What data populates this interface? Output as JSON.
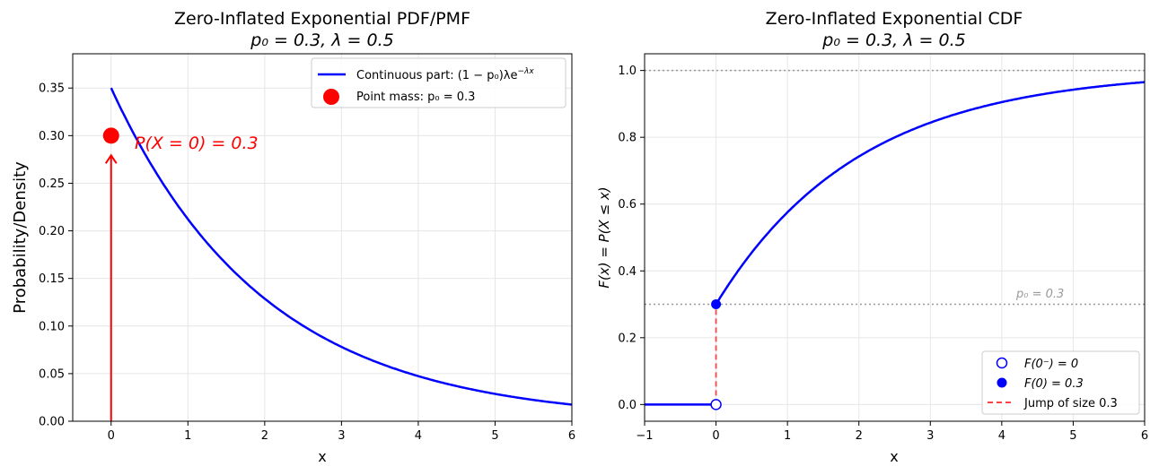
{
  "chart_data": [
    {
      "type": "line",
      "title": "Zero-Inflated Exponential PDF/PMF",
      "subtitle": "p₀ = 0.3, λ = 0.5",
      "xlabel": "x",
      "ylabel": "Probability/Density",
      "xlim": [
        -0.5,
        6
      ],
      "ylim": [
        0,
        0.386
      ],
      "xticks": [
        0,
        1,
        2,
        3,
        4,
        5,
        6
      ],
      "yticks": [
        0.0,
        0.05,
        0.1,
        0.15,
        0.2,
        0.25,
        0.3,
        0.35
      ],
      "grid": true,
      "p0": 0.3,
      "lambda": 0.5,
      "series": [
        {
          "name": "Continuous part: (1 − p₀)λe",
          "name_sup": "−λx",
          "formula": "(1-p0)*lambda*exp(-lambda*x)",
          "x_range": [
            0,
            6
          ],
          "color": "#0000ff"
        },
        {
          "name": "Point mass: p₀ = 0.3",
          "x": [
            0
          ],
          "y": [
            0.3
          ],
          "color": "#ff0000",
          "marker": "circle"
        }
      ],
      "annotation": "P(X = 0) = 0.3",
      "legend_placement": "top-right"
    },
    {
      "type": "line",
      "title": "Zero-Inflated Exponential CDF",
      "subtitle": "p₀ = 0.3, λ = 0.5",
      "xlabel": "x",
      "ylabel": "F(x) = P(X ≤ x)",
      "xlim": [
        -1,
        6
      ],
      "ylim": [
        -0.05,
        1.05
      ],
      "xticks": [
        -1,
        0,
        1,
        2,
        3,
        4,
        5,
        6
      ],
      "yticks": [
        0.0,
        0.2,
        0.4,
        0.6,
        0.8,
        1.0
      ],
      "grid": true,
      "hlines": [
        {
          "y": 1.0,
          "color": "#999999"
        },
        {
          "y": 0.3,
          "color": "#999999",
          "label": "p₀ = 0.3"
        }
      ],
      "series": [
        {
          "name": "F(0⁻) = 0",
          "x": [
            0
          ],
          "y": [
            0
          ],
          "marker": "open-circle",
          "color": "#0000ff"
        },
        {
          "name": "F(0) = 0.3",
          "x": [
            0
          ],
          "y": [
            0.3
          ],
          "marker": "filled-circle",
          "color": "#0000ff"
        },
        {
          "name": "Jump of size 0.3",
          "x": [
            0,
            0
          ],
          "y": [
            0,
            0.3
          ],
          "style": "dashed",
          "color": "#ff4444"
        },
        {
          "name": "CDF",
          "formula": "x<0 ? 0 : p0 + (1-p0)*(1-exp(-lambda*x))",
          "x_range": [
            -1,
            6
          ],
          "color": "#0000ff"
        }
      ],
      "legend_placement": "bottom-right"
    }
  ]
}
